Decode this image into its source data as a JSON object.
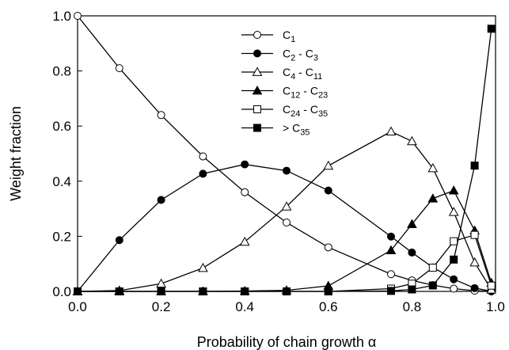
{
  "chart_data": {
    "type": "line",
    "xlabel": "Probability of chain growth α",
    "ylabel": "Weight fraction",
    "xlim": [
      0.0,
      1.0
    ],
    "ylim": [
      0.0,
      1.0
    ],
    "x_ticks": [
      "0.0",
      "0.2",
      "0.4",
      "0.6",
      "0.8",
      "1.0"
    ],
    "y_ticks": [
      "0.0",
      "0.2",
      "0.4",
      "0.6",
      "0.8",
      "1.0"
    ],
    "grid": false,
    "legend_position": "top-center",
    "x": [
      0.0,
      0.1,
      0.2,
      0.3,
      0.4,
      0.5,
      0.6,
      0.75,
      0.8,
      0.85,
      0.9,
      0.95,
      0.99
    ],
    "series": [
      {
        "name_parts": [
          "C",
          "1",
          ""
        ],
        "marker": "circle",
        "fill": "open",
        "values": [
          1.0,
          0.81,
          0.64,
          0.49,
          0.36,
          0.25,
          0.16,
          0.0625,
          0.04,
          0.0225,
          0.01,
          0.0025,
          0.0001
        ]
      },
      {
        "name_parts": [
          "C",
          "2",
          " - C",
          "3",
          ""
        ],
        "marker": "circle",
        "fill": "filled",
        "values": [
          0.0,
          0.186,
          0.332,
          0.427,
          0.461,
          0.438,
          0.366,
          0.199,
          0.141,
          0.087,
          0.044,
          0.012,
          0.0005
        ]
      },
      {
        "name_parts": [
          "C",
          "4",
          " - C",
          "11",
          ""
        ],
        "marker": "triangle",
        "fill": "open",
        "values": [
          0.0,
          0.003,
          0.028,
          0.085,
          0.18,
          0.308,
          0.456,
          0.58,
          0.545,
          0.447,
          0.288,
          0.105,
          0.0065
        ]
      },
      {
        "name_parts": [
          "C",
          "12",
          " - C",
          "23",
          ""
        ],
        "marker": "triangle",
        "fill": "filled",
        "values": [
          0.0,
          0.0,
          0.0,
          0.0004,
          0.0015,
          0.004,
          0.02,
          0.149,
          0.244,
          0.337,
          0.366,
          0.221,
          0.031
        ]
      },
      {
        "name_parts": [
          "C",
          "24",
          " - C",
          "35",
          ""
        ],
        "marker": "square",
        "fill": "open",
        "values": [
          0.0,
          0.0,
          0.0,
          0.0,
          0.0,
          0.0,
          0.0,
          0.01,
          0.028,
          0.086,
          0.182,
          0.205,
          0.021
        ]
      },
      {
        "name_parts": [
          "> C",
          "35",
          ""
        ],
        "marker": "square",
        "fill": "filled",
        "values": [
          0.0,
          0.0,
          0.0,
          0.0,
          0.0,
          0.0,
          0.0,
          0.0018,
          0.0071,
          0.0215,
          0.1155,
          0.4565,
          0.9532
        ]
      }
    ]
  }
}
